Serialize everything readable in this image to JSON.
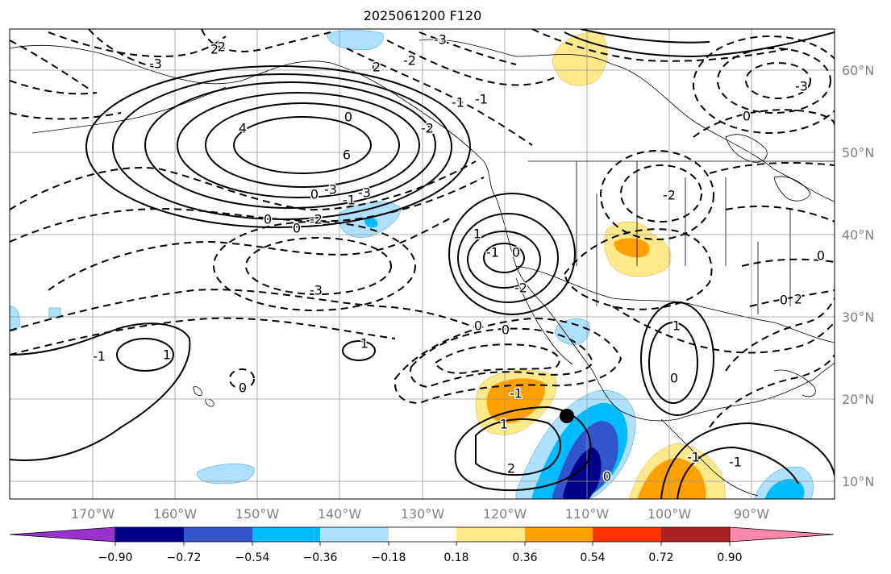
{
  "title": "2025061200 F120",
  "map": {
    "lat_labels": [
      "60°N",
      "50°N",
      "40°N",
      "30°N",
      "20°N",
      "10°N"
    ],
    "lon_labels": [
      "170°W",
      "160°W",
      "150°W",
      "140°W",
      "130°W",
      "120°W",
      "110°W",
      "100°W",
      "90°W"
    ],
    "gridlines": true,
    "contour_labels": [
      "-3",
      "-2",
      "0",
      "-2",
      "-1",
      "-1",
      "-2",
      "0",
      "4",
      "6",
      "-3",
      "2",
      "-3",
      "0",
      "-1",
      "-3",
      "0",
      "-2",
      "0",
      "-3",
      "2",
      "-2",
      "0",
      "-3",
      "0",
      "2",
      "0",
      "1",
      "-1",
      "0",
      "-2",
      "0",
      "0",
      "1",
      "1",
      "-1",
      "0",
      "1",
      "0",
      "-1",
      "1",
      "2",
      "0",
      "-1",
      "-1"
    ],
    "marker": "black dot",
    "colors": {
      "solid_contour": "#000000",
      "dashed_contour": "#000000",
      "land_outline": "#000000"
    }
  },
  "colorbar": {
    "colors": [
      "#9933cc",
      "#000088",
      "#3355cc",
      "#00bbff",
      "#aee0ff",
      "#ffffff",
      "#ffe98a",
      "#ffa000",
      "#ff3300",
      "#aa2222",
      "#ff88aa"
    ],
    "tick_labels": [
      "−0.90",
      "−0.72",
      "−0.54",
      "−0.36",
      "−0.18",
      "0.18",
      "0.36",
      "0.54",
      "0.72",
      "0.90"
    ]
  }
}
